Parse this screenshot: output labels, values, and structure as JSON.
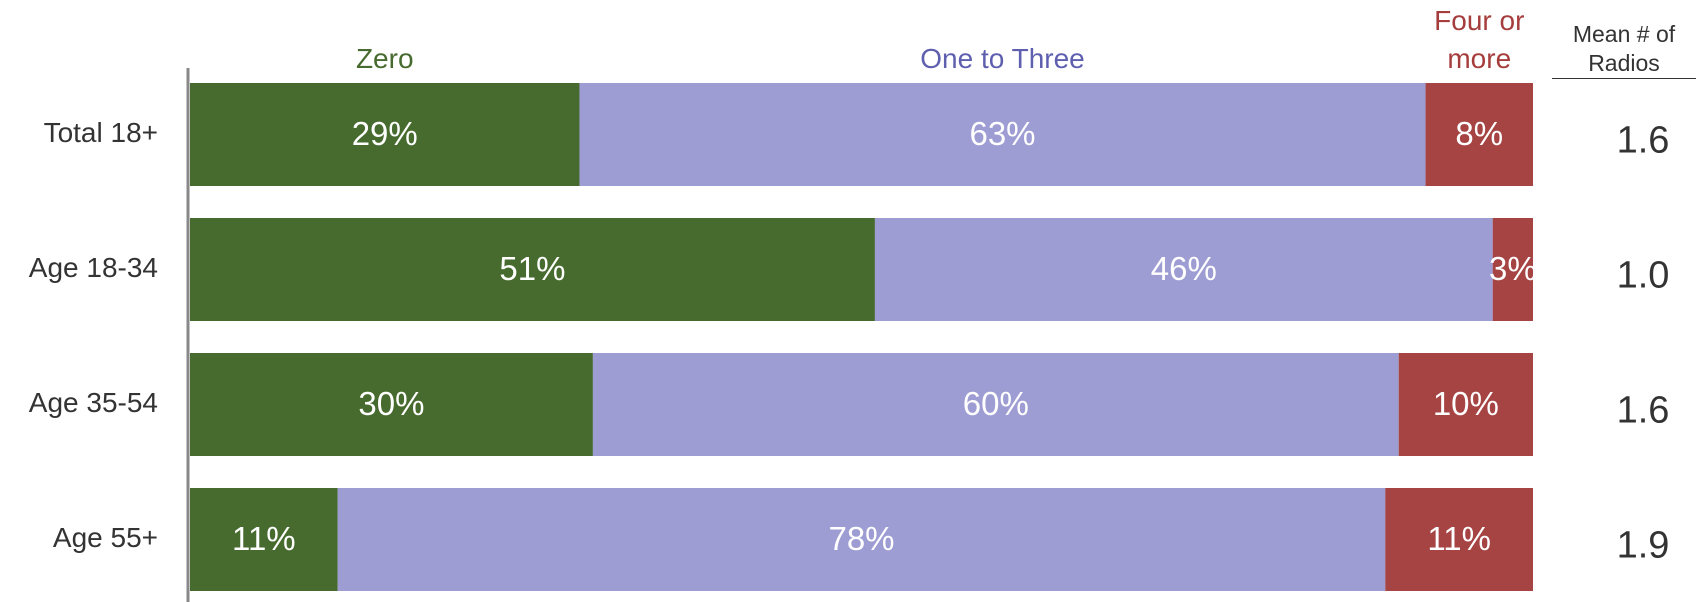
{
  "chart_data": {
    "type": "stacked_bar_horizontal",
    "categories": [
      "Total 18+",
      "Age 18-34",
      "Age 35-54",
      "Age 55+"
    ],
    "series": [
      {
        "name": "Zero",
        "color": "#476b2e",
        "label_color": "#476b2e",
        "values": [
          29,
          51,
          30,
          11
        ],
        "value_labels": [
          "29%",
          "51%",
          "30%",
          "11%"
        ]
      },
      {
        "name": "One to Three",
        "color": "#9d9dd3",
        "label_color": "#5f5fb0",
        "values": [
          63,
          46,
          60,
          78
        ],
        "value_labels": [
          "63%",
          "46%",
          "60%",
          "78%"
        ]
      },
      {
        "name": "Four or more",
        "color": "#a64444",
        "label_color": "#a63d3d",
        "values": [
          8,
          3,
          10,
          11
        ],
        "value_labels": [
          "8%",
          "3%",
          "10%",
          "11%"
        ]
      }
    ],
    "xlim": [
      0,
      100
    ],
    "mean_title": "Mean # of Radios",
    "means": {
      "values": [
        1.6,
        1.0,
        1.6,
        1.9
      ],
      "value_labels": [
        "1.6",
        "1.0",
        "1.6",
        "1.9"
      ]
    }
  }
}
